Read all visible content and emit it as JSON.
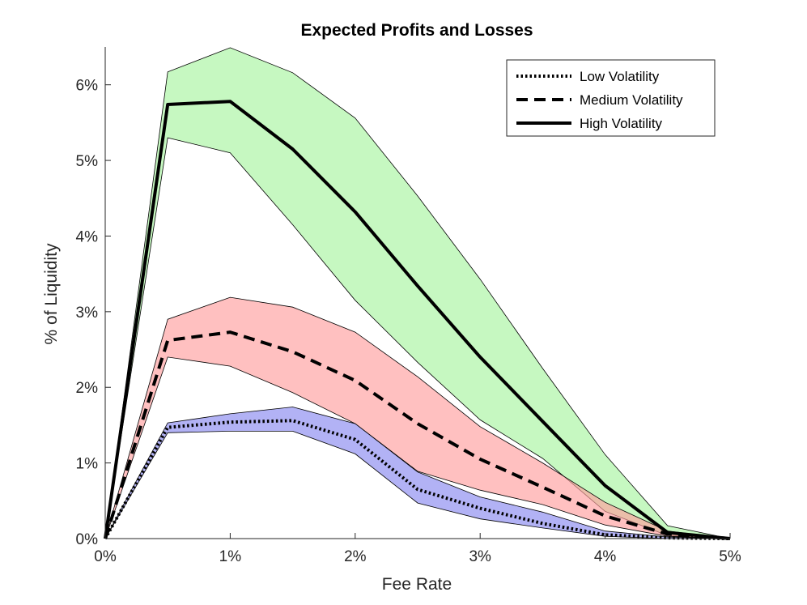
{
  "chart_data": {
    "type": "line",
    "title": "Expected Profits and Losses",
    "xlabel": "Fee Rate",
    "ylabel": "% of Liquidity",
    "xlim": [
      0,
      5
    ],
    "ylim": [
      0,
      6.5
    ],
    "xticks": [
      0,
      1,
      2,
      3,
      4,
      5
    ],
    "xtick_labels": [
      "0%",
      "1%",
      "2%",
      "3%",
      "4%",
      "5%"
    ],
    "yticks": [
      0,
      1,
      2,
      3,
      4,
      5,
      6
    ],
    "ytick_labels": [
      "0%",
      "1%",
      "2%",
      "3%",
      "4%",
      "5%",
      "6%"
    ],
    "legend_position": "top-right",
    "x": [
      0,
      0.5,
      1,
      1.5,
      2,
      2.5,
      3,
      3.5,
      4,
      4.5,
      5
    ],
    "series": [
      {
        "name": "Low Volatility",
        "style": "dotted",
        "band_color": "#8888f0",
        "mean": [
          0,
          1.47,
          1.54,
          1.56,
          1.31,
          0.65,
          0.4,
          0.2,
          0.05,
          0.01,
          0
        ],
        "upper": [
          0,
          1.53,
          1.65,
          1.74,
          1.52,
          0.88,
          0.55,
          0.35,
          0.1,
          0.02,
          0
        ],
        "lower": [
          0,
          1.4,
          1.42,
          1.42,
          1.12,
          0.47,
          0.26,
          0.14,
          0.03,
          0.0,
          0
        ]
      },
      {
        "name": "Medium Volatility",
        "style": "dashed",
        "band_color": "#ff9e9e",
        "mean": [
          0,
          2.62,
          2.73,
          2.47,
          2.09,
          1.52,
          1.05,
          0.68,
          0.3,
          0.06,
          0
        ],
        "upper": [
          0,
          2.9,
          3.19,
          3.06,
          2.73,
          2.14,
          1.48,
          1.0,
          0.48,
          0.1,
          0
        ],
        "lower": [
          0,
          2.4,
          2.28,
          1.93,
          1.52,
          0.89,
          0.64,
          0.45,
          0.18,
          0.03,
          0
        ]
      },
      {
        "name": "High Volatility",
        "style": "solid",
        "band_color": "#a8f5a0",
        "mean": [
          0,
          5.74,
          5.78,
          5.15,
          4.32,
          3.34,
          2.4,
          1.55,
          0.7,
          0.08,
          0
        ],
        "upper": [
          0,
          6.17,
          6.49,
          6.16,
          5.56,
          4.53,
          3.43,
          2.25,
          1.11,
          0.17,
          0
        ],
        "lower": [
          0,
          5.3,
          5.1,
          4.15,
          3.15,
          2.33,
          1.57,
          1.06,
          0.36,
          0.04,
          0
        ]
      }
    ]
  }
}
